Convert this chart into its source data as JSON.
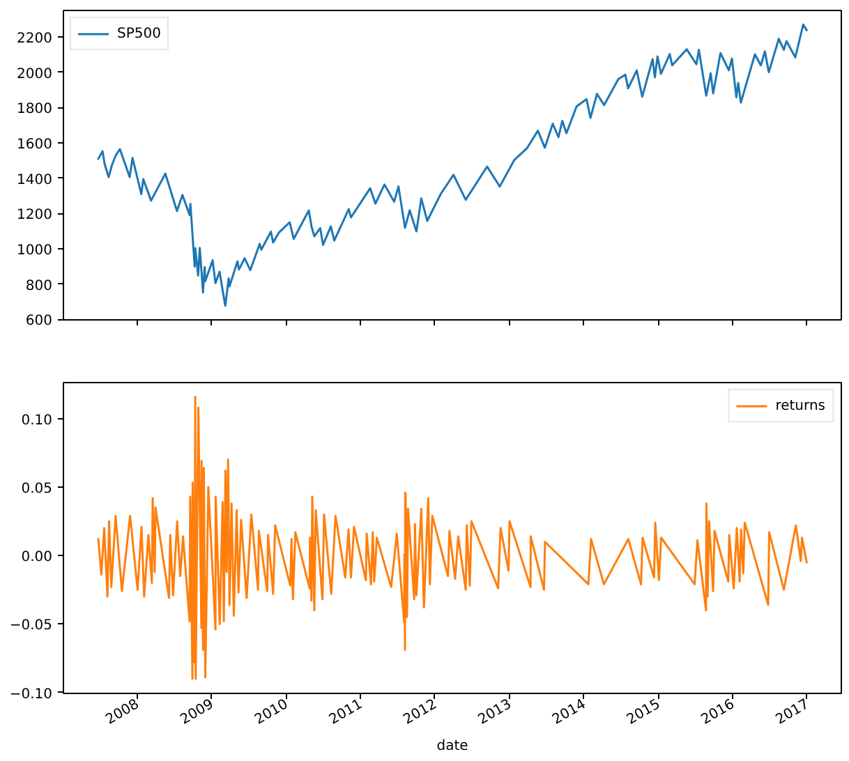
{
  "chart_data": [
    {
      "type": "line",
      "legend": "top left",
      "grid": false,
      "tick_labels": "y",
      "xlim": [
        "2007-01-05",
        "2017-06-18"
      ],
      "xticks": [
        "2008",
        "2009",
        "2010",
        "2011",
        "2012",
        "2013",
        "2014",
        "2015",
        "2016",
        "2017"
      ],
      "ylim": [
        597,
        2351
      ],
      "yticks": [
        600,
        800,
        1000,
        1200,
        1400,
        1600,
        1800,
        2000,
        2200
      ],
      "x": [
        "2007-06-25",
        "2007-07-16",
        "2007-07-26",
        "2007-08-15",
        "2007-08-31",
        "2007-09-19",
        "2007-10-09",
        "2007-11-26",
        "2007-12-10",
        "2008-01-22",
        "2008-02-01",
        "2008-03-10",
        "2008-05-19",
        "2008-07-15",
        "2008-08-11",
        "2008-09-15",
        "2008-09-19",
        "2008-10-10",
        "2008-10-13",
        "2008-10-27",
        "2008-11-04",
        "2008-11-20",
        "2008-11-28",
        "2008-12-01",
        "2009-01-06",
        "2009-01-20",
        "2009-02-09",
        "2009-03-09",
        "2009-03-26",
        "2009-03-30",
        "2009-05-08",
        "2009-05-15",
        "2009-06-12",
        "2009-07-10",
        "2009-08-25",
        "2009-09-02",
        "2009-10-19",
        "2009-10-30",
        "2009-11-27",
        "2010-01-19",
        "2010-02-08",
        "2010-04-23",
        "2010-05-06",
        "2010-05-20",
        "2010-06-18",
        "2010-07-02",
        "2010-08-09",
        "2010-08-26",
        "2010-11-05",
        "2010-11-16",
        "2011-02-18",
        "2011-03-16",
        "2011-04-29",
        "2011-06-16",
        "2011-07-07",
        "2011-08-08",
        "2011-08-31",
        "2011-10-03",
        "2011-10-27",
        "2011-11-25",
        "2012-01-31",
        "2012-04-02",
        "2012-06-01",
        "2012-09-14",
        "2012-11-15",
        "2013-01-25",
        "2013-03-28",
        "2013-05-21",
        "2013-06-24",
        "2013-08-02",
        "2013-08-30",
        "2013-09-18",
        "2013-10-08",
        "2013-11-27",
        "2014-01-15",
        "2014-02-03",
        "2014-03-07",
        "2014-04-11",
        "2014-06-20",
        "2014-07-24",
        "2014-08-07",
        "2014-09-18",
        "2014-10-15",
        "2014-12-05",
        "2014-12-16",
        "2014-12-29",
        "2015-01-15",
        "2015-02-27",
        "2015-03-11",
        "2015-05-21",
        "2015-07-08",
        "2015-07-20",
        "2015-08-25",
        "2015-09-16",
        "2015-09-28",
        "2015-11-03",
        "2015-12-14",
        "2015-12-29",
        "2016-01-20",
        "2016-01-29",
        "2016-02-11",
        "2016-04-20",
        "2016-05-19",
        "2016-06-08",
        "2016-06-27",
        "2016-08-15",
        "2016-09-09",
        "2016-09-22",
        "2016-11-04",
        "2016-12-13",
        "2016-12-30"
      ],
      "series": [
        {
          "name": "SP500",
          "color": "#1f77b4",
          "values": [
            1510,
            1553,
            1482,
            1406,
            1474,
            1530,
            1565,
            1407,
            1515,
            1310,
            1395,
            1273,
            1426,
            1214,
            1305,
            1192,
            1255,
            899,
            1003,
            848,
            1005,
            752,
            896,
            816,
            935,
            805,
            870,
            677,
            832,
            787,
            929,
            882,
            946,
            879,
            1028,
            995,
            1097,
            1036,
            1091,
            1150,
            1056,
            1217,
            1128,
            1071,
            1117,
            1022,
            1127,
            1047,
            1225,
            1178,
            1343,
            1256,
            1364,
            1267,
            1353,
            1119,
            1218,
            1099,
            1285,
            1158,
            1312,
            1419,
            1278,
            1466,
            1353,
            1503,
            1569,
            1669,
            1573,
            1709,
            1633,
            1725,
            1655,
            1807,
            1848,
            1742,
            1878,
            1815,
            1962,
            1987,
            1910,
            2011,
            1862,
            2075,
            1972,
            2090,
            1992,
            2104,
            2040,
            2131,
            2046,
            2128,
            1868,
            1995,
            1881,
            2109,
            2012,
            2078,
            1859,
            1940,
            1829,
            2102,
            2040,
            2119,
            2001,
            2190,
            2128,
            2177,
            2085,
            2271,
            2239
          ]
        }
      ]
    },
    {
      "type": "line",
      "legend": "top right",
      "grid": false,
      "xlabel": "date",
      "xlim": [
        "2007-01-05",
        "2017-06-18"
      ],
      "xticks": [
        "2008",
        "2009",
        "2010",
        "2011",
        "2012",
        "2013",
        "2014",
        "2015",
        "2016",
        "2017"
      ],
      "ylim": [
        -0.1007,
        0.1263
      ],
      "yticks": [
        {
          "value": -0.1,
          "label": "−0.10"
        },
        {
          "value": -0.05,
          "label": "−0.05"
        },
        {
          "value": 0,
          "label": "0.00"
        },
        0.05,
        {
          "value": 0.1,
          "label": "0.10"
        }
      ],
      "x": [
        "2007-06-25",
        "2007-07-10",
        "2007-07-24",
        "2007-08-09",
        "2007-08-17",
        "2007-08-28",
        "2007-09-18",
        "2007-10-19",
        "2007-11-28",
        "2008-01-04",
        "2008-01-23",
        "2008-02-05",
        "2008-02-26",
        "2008-03-14",
        "2008-03-18",
        "2008-03-28",
        "2008-04-01",
        "2008-06-06",
        "2008-06-12",
        "2008-06-26",
        "2008-07-16",
        "2008-07-31",
        "2008-08-14",
        "2008-09-15",
        "2008-09-18",
        "2008-09-29",
        "2008-09-30",
        "2008-10-09",
        "2008-10-13",
        "2008-10-15",
        "2008-10-28",
        "2008-11-12",
        "2008-11-13",
        "2008-11-20",
        "2008-11-24",
        "2008-12-01",
        "2008-12-16",
        "2009-01-20",
        "2009-01-21",
        "2009-02-10",
        "2009-02-24",
        "2009-03-02",
        "2009-03-10",
        "2009-03-16",
        "2009-03-23",
        "2009-03-30",
        "2009-04-09",
        "2009-04-20",
        "2009-05-04",
        "2009-05-13",
        "2009-05-26",
        "2009-06-22",
        "2009-07-15",
        "2009-08-17",
        "2009-08-21",
        "2009-10-01",
        "2009-10-05",
        "2009-10-30",
        "2009-11-09",
        "2010-01-22",
        "2010-01-28",
        "2010-02-04",
        "2010-02-16",
        "2010-04-27",
        "2010-04-29",
        "2010-05-06",
        "2010-05-10",
        "2010-05-20",
        "2010-05-27",
        "2010-06-29",
        "2010-07-07",
        "2010-08-11",
        "2010-09-01",
        "2010-10-19",
        "2010-11-04",
        "2010-11-16",
        "2010-12-01",
        "2011-01-28",
        "2011-02-01",
        "2011-02-22",
        "2011-03-03",
        "2011-03-10",
        "2011-03-23",
        "2011-06-01",
        "2011-06-29",
        "2011-08-04",
        "2011-08-05",
        "2011-08-08",
        "2011-08-09",
        "2011-08-10",
        "2011-08-11",
        "2011-08-18",
        "2011-08-23",
        "2011-09-22",
        "2011-09-26",
        "2011-10-03",
        "2011-10-27",
        "2011-11-09",
        "2011-11-30",
        "2011-12-08",
        "2011-12-20",
        "2012-03-06",
        "2012-03-13",
        "2012-04-10",
        "2012-04-25",
        "2012-06-01",
        "2012-06-06",
        "2012-06-21",
        "2012-06-29",
        "2012-11-07",
        "2012-11-19",
        "2012-12-28",
        "2013-01-02",
        "2013-04-15",
        "2013-04-16",
        "2013-06-20",
        "2013-06-25",
        "2014-01-24",
        "2014-02-06",
        "2014-04-10",
        "2014-08-08",
        "2014-10-09",
        "2014-10-17",
        "2014-12-12",
        "2014-12-18",
        "2015-01-05",
        "2015-01-16",
        "2015-06-29",
        "2015-07-13",
        "2015-08-24",
        "2015-08-26",
        "2015-09-01",
        "2015-09-08",
        "2015-09-28",
        "2015-10-05",
        "2015-12-11",
        "2015-12-16",
        "2016-01-07",
        "2016-01-22",
        "2016-02-05",
        "2016-02-12",
        "2016-02-23",
        "2016-03-01",
        "2016-06-24",
        "2016-06-29",
        "2016-09-09",
        "2016-11-07",
        "2016-12-01",
        "2016-12-07",
        "2016-12-30"
      ],
      "series": [
        {
          "name": "returns",
          "color": "#ff7f0e",
          "values": [
            0.012,
            -0.014,
            0.02,
            -0.03,
            0.025,
            -0.023,
            0.029,
            -0.026,
            0.029,
            -0.025,
            0.021,
            -0.03,
            0.015,
            -0.02,
            0.042,
            -0.012,
            0.035,
            -0.031,
            0.015,
            -0.029,
            0.025,
            -0.015,
            0.014,
            -0.048,
            0.043,
            -0.09,
            0.053,
            -0.078,
            0.116,
            -0.09,
            0.108,
            -0.053,
            0.069,
            -0.069,
            0.064,
            -0.089,
            0.05,
            -0.054,
            0.043,
            -0.05,
            0.039,
            -0.048,
            0.062,
            -0.012,
            0.07,
            -0.036,
            0.038,
            -0.044,
            0.033,
            -0.027,
            0.026,
            -0.031,
            0.03,
            -0.025,
            0.018,
            -0.026,
            0.015,
            -0.028,
            0.022,
            -0.022,
            0.012,
            -0.032,
            0.017,
            -0.024,
            0.013,
            -0.033,
            0.043,
            -0.04,
            0.033,
            -0.032,
            0.03,
            -0.028,
            0.029,
            -0.016,
            0.019,
            -0.016,
            0.021,
            -0.018,
            0.016,
            -0.021,
            0.017,
            -0.019,
            0.013,
            -0.023,
            0.016,
            -0.049,
            0.001,
            -0.069,
            0.046,
            -0.045,
            0.045,
            -0.045,
            0.034,
            -0.032,
            0.023,
            -0.029,
            0.034,
            -0.038,
            0.042,
            -0.021,
            0.029,
            -0.015,
            0.018,
            -0.017,
            0.014,
            -0.025,
            0.022,
            -0.022,
            0.025,
            -0.024,
            0.02,
            -0.011,
            0.025,
            -0.023,
            0.014,
            -0.025,
            0.01,
            -0.021,
            0.012,
            -0.021,
            0.012,
            -0.021,
            0.013,
            -0.016,
            0.024,
            -0.018,
            0.013,
            -0.021,
            0.011,
            -0.04,
            0.038,
            -0.03,
            0.025,
            -0.026,
            0.018,
            -0.019,
            0.015,
            -0.024,
            0.02,
            -0.019,
            0.019,
            -0.013,
            0.024,
            -0.036,
            0.017,
            -0.025,
            0.022,
            -0.004,
            0.013,
            -0.005
          ]
        }
      ]
    }
  ]
}
